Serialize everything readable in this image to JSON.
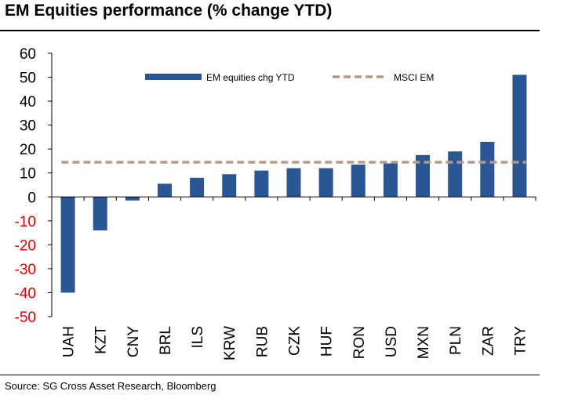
{
  "title": "EM Equities performance (% change YTD)",
  "source": "Source: SG Cross Asset Research, Bloomberg",
  "colors": {
    "bar": "#2a5694",
    "reference": "#b49a86",
    "positive_tick": "#000000",
    "negative_tick": "#e00000"
  },
  "chart_data": {
    "type": "bar",
    "categories": [
      "UAH",
      "KZT",
      "CNY",
      "BRL",
      "ILS",
      "KRW",
      "RUB",
      "CZK",
      "HUF",
      "RON",
      "USD",
      "MXN",
      "PLN",
      "ZAR",
      "TRY"
    ],
    "series": [
      {
        "name": "EM equities chg YTD",
        "values": [
          -40,
          -14,
          -1.5,
          5.5,
          8,
          9.5,
          11,
          12,
          12,
          13.5,
          14,
          17.5,
          19,
          23,
          51
        ]
      },
      {
        "name": "MSCI EM",
        "type": "reference-line",
        "value": 14.5
      }
    ],
    "ylim": [
      -50,
      60
    ],
    "yticks": [
      "60",
      "50",
      "40",
      "30",
      "20",
      "10",
      "0",
      "-10",
      "-20",
      "-30",
      "-40",
      "-50"
    ],
    "legend_position": "top",
    "grid": false
  }
}
